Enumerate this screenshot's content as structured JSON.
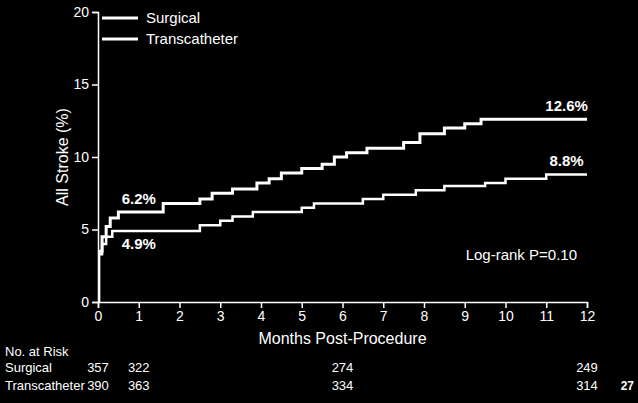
{
  "chart_data": {
    "type": "line",
    "x_label": "Months Post-Procedure",
    "y_label": "All Stroke (%)",
    "xlim": [
      0,
      12
    ],
    "xticks": [
      0,
      1,
      2,
      3,
      4,
      5,
      6,
      7,
      8,
      9,
      10,
      11,
      12
    ],
    "ylim": [
      0,
      20
    ],
    "yticks": [
      0,
      5,
      10,
      15,
      20
    ],
    "grid": false,
    "legend": "top-left",
    "line_style": "step",
    "series": [
      {
        "name": "Surgical",
        "color": "#ffffff",
        "x": [
          0,
          0.02,
          0.1,
          0.2,
          0.3,
          0.5,
          1.6,
          2.5,
          2.8,
          3.3,
          3.9,
          4.2,
          4.5,
          5.0,
          5.5,
          5.8,
          6.1,
          6.6,
          7.5,
          7.9,
          8.5,
          9.0,
          9.4,
          12
        ],
        "values": [
          0,
          3.5,
          4.5,
          5.2,
          5.8,
          6.2,
          6.8,
          7.1,
          7.5,
          7.8,
          8.2,
          8.5,
          8.9,
          9.2,
          9.5,
          10.0,
          10.3,
          10.6,
          11.0,
          11.6,
          12.0,
          12.3,
          12.6,
          12.6
        ]
      },
      {
        "name": "Transcatheter",
        "color": "#ffffff",
        "x": [
          0,
          0.02,
          0.1,
          0.2,
          0.35,
          2.5,
          3.0,
          3.3,
          3.8,
          5.0,
          5.3,
          6.5,
          7.0,
          7.8,
          8.5,
          9.5,
          10.0,
          11.0,
          12
        ],
        "values": [
          0,
          3.3,
          4.0,
          4.5,
          4.9,
          5.3,
          5.6,
          5.9,
          6.2,
          6.5,
          6.8,
          7.1,
          7.4,
          7.7,
          8.0,
          8.2,
          8.5,
          8.8,
          8.8
        ]
      }
    ],
    "annotations": [
      {
        "text": "6.2%",
        "x": 1,
        "y": 6.2
      },
      {
        "text": "4.9%",
        "x": 1,
        "y": 4.9
      },
      {
        "text": "12.6%",
        "x": 11.5,
        "y": 12.6
      },
      {
        "text": "8.8%",
        "x": 11.5,
        "y": 8.8
      }
    ],
    "note": "Log-rank P=0.10",
    "risk_table": {
      "title": "No. at Risk",
      "x": [
        0,
        1,
        6,
        12
      ],
      "rows": [
        {
          "name": "Surgical",
          "values": [
            357,
            322,
            274,
            249
          ]
        },
        {
          "name": "Transcatheter",
          "values": [
            390,
            363,
            334,
            314
          ]
        }
      ]
    },
    "footer": "27"
  }
}
